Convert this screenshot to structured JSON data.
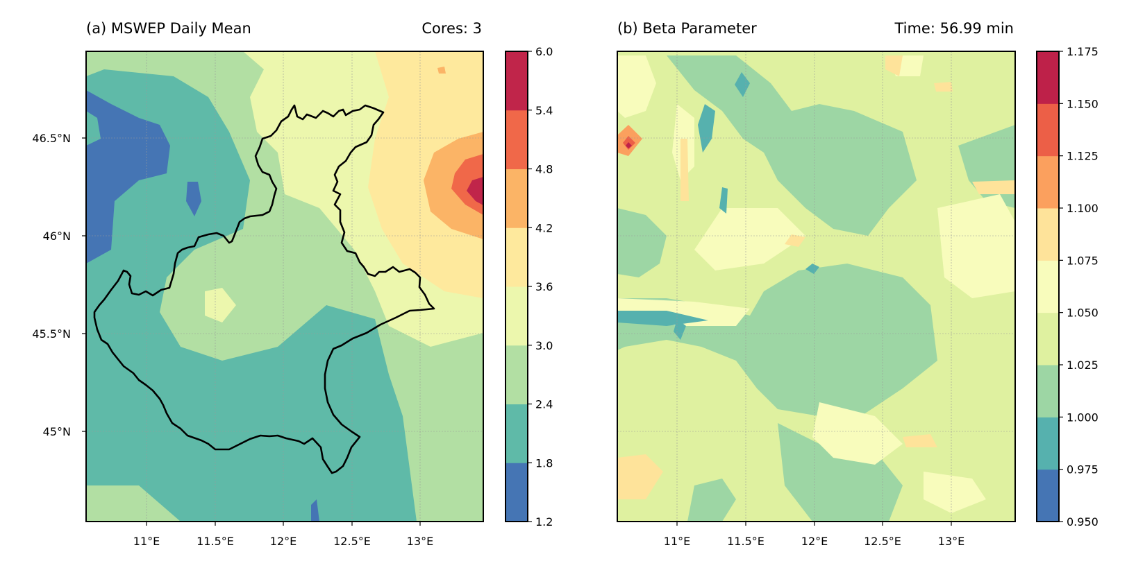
{
  "panels": [
    {
      "title_left": "(a) MSWEP Daily Mean",
      "title_right": "Cores: 3",
      "x_ticks": [
        "11°E",
        "11.5°E",
        "12°E",
        "12.5°E",
        "13°E"
      ],
      "y_ticks": [
        "46.5°N",
        "46°N",
        "45.5°N",
        "45°N"
      ],
      "colorbar": {
        "levels": [
          "1.2",
          "1.8",
          "2.4",
          "3.0",
          "3.6",
          "4.2",
          "4.8",
          "5.4",
          "6.0"
        ],
        "colors": [
          "#4575b4",
          "#5fbaa8",
          "#b2dfa3",
          "#ecf7ad",
          "#fee99d",
          "#fbb466",
          "#f06849",
          "#c0254a"
        ]
      }
    },
    {
      "title_left": "(b) Beta Parameter",
      "title_right": "Time: 56.99 min",
      "x_ticks": [
        "11°E",
        "11.5°E",
        "12°E",
        "12.5°E",
        "13°E"
      ],
      "y_ticks": [],
      "colorbar": {
        "levels": [
          "0.950",
          "0.975",
          "1.000",
          "1.025",
          "1.050",
          "1.075",
          "1.100",
          "1.125",
          "1.150",
          "1.175"
        ],
        "colors": [
          "#4575b4",
          "#56b1ae",
          "#9dd6a4",
          "#dff1a0",
          "#f8fcbc",
          "#fee39a",
          "#fba05e",
          "#ec5f47",
          "#be2149"
        ]
      }
    }
  ],
  "chart_data": [
    {
      "type": "heatmap",
      "title": "(a) MSWEP Daily Mean",
      "annotation": "Cores: 3",
      "x_range_lon": [
        10.55,
        13.45
      ],
      "y_range_lat": [
        44.55,
        46.95
      ],
      "x_ticks_lon": [
        11,
        11.5,
        12,
        12.5,
        13
      ],
      "y_ticks_lat": [
        46.5,
        46,
        45.5,
        45
      ],
      "levels": [
        1.2,
        1.8,
        2.4,
        3.0,
        3.6,
        4.2,
        4.8,
        5.4,
        6.0
      ],
      "grid": true,
      "regions": [
        {
          "lon": 10.6,
          "lat": 46.7,
          "value": 1.5
        },
        {
          "lon": 10.7,
          "lat": 46.1,
          "value": 1.5
        },
        {
          "lon": 11.3,
          "lat": 46.2,
          "value": 1.5
        },
        {
          "lon": 11.2,
          "lat": 45.6,
          "value": 2.1
        },
        {
          "lon": 12.0,
          "lat": 45.2,
          "value": 2.1
        },
        {
          "lon": 11.9,
          "lat": 45.6,
          "value": 2.7
        },
        {
          "lon": 12.1,
          "lat": 46.3,
          "value": 3.3
        },
        {
          "lon": 13.0,
          "lat": 45.6,
          "value": 3.3
        },
        {
          "lon": 12.8,
          "lat": 46.4,
          "value": 3.9
        },
        {
          "lon": 13.2,
          "lat": 46.3,
          "value": 4.5
        },
        {
          "lon": 13.3,
          "lat": 46.25,
          "value": 5.1
        },
        {
          "lon": 13.4,
          "lat": 46.22,
          "value": 5.7
        }
      ]
    },
    {
      "type": "heatmap",
      "title": "(b) Beta Parameter",
      "annotation": "Time: 56.99 min",
      "x_range_lon": [
        10.55,
        13.45
      ],
      "y_range_lat": [
        44.55,
        46.95
      ],
      "x_ticks_lon": [
        11,
        11.5,
        12,
        12.5,
        13
      ],
      "y_ticks_lat": [
        46.5,
        46,
        45.5,
        45
      ],
      "levels": [
        0.95,
        0.975,
        1.0,
        1.025,
        1.05,
        1.075,
        1.1,
        1.125,
        1.15,
        1.175
      ],
      "grid": true,
      "regions": [
        {
          "lon": 12.2,
          "lat": 45.4,
          "value": 1.0125
        },
        {
          "lon": 11.4,
          "lat": 46.6,
          "value": 0.9875
        },
        {
          "lon": 11.1,
          "lat": 45.7,
          "value": 1.0375
        },
        {
          "lon": 12.6,
          "lat": 45.0,
          "value": 1.0375
        },
        {
          "lon": 11.6,
          "lat": 45.9,
          "value": 1.0625
        },
        {
          "lon": 12.8,
          "lat": 46.85,
          "value": 1.0875
        },
        {
          "lon": 10.65,
          "lat": 46.45,
          "value": 1.1375
        },
        {
          "lon": 10.65,
          "lat": 46.45,
          "value": 1.16
        }
      ]
    }
  ]
}
